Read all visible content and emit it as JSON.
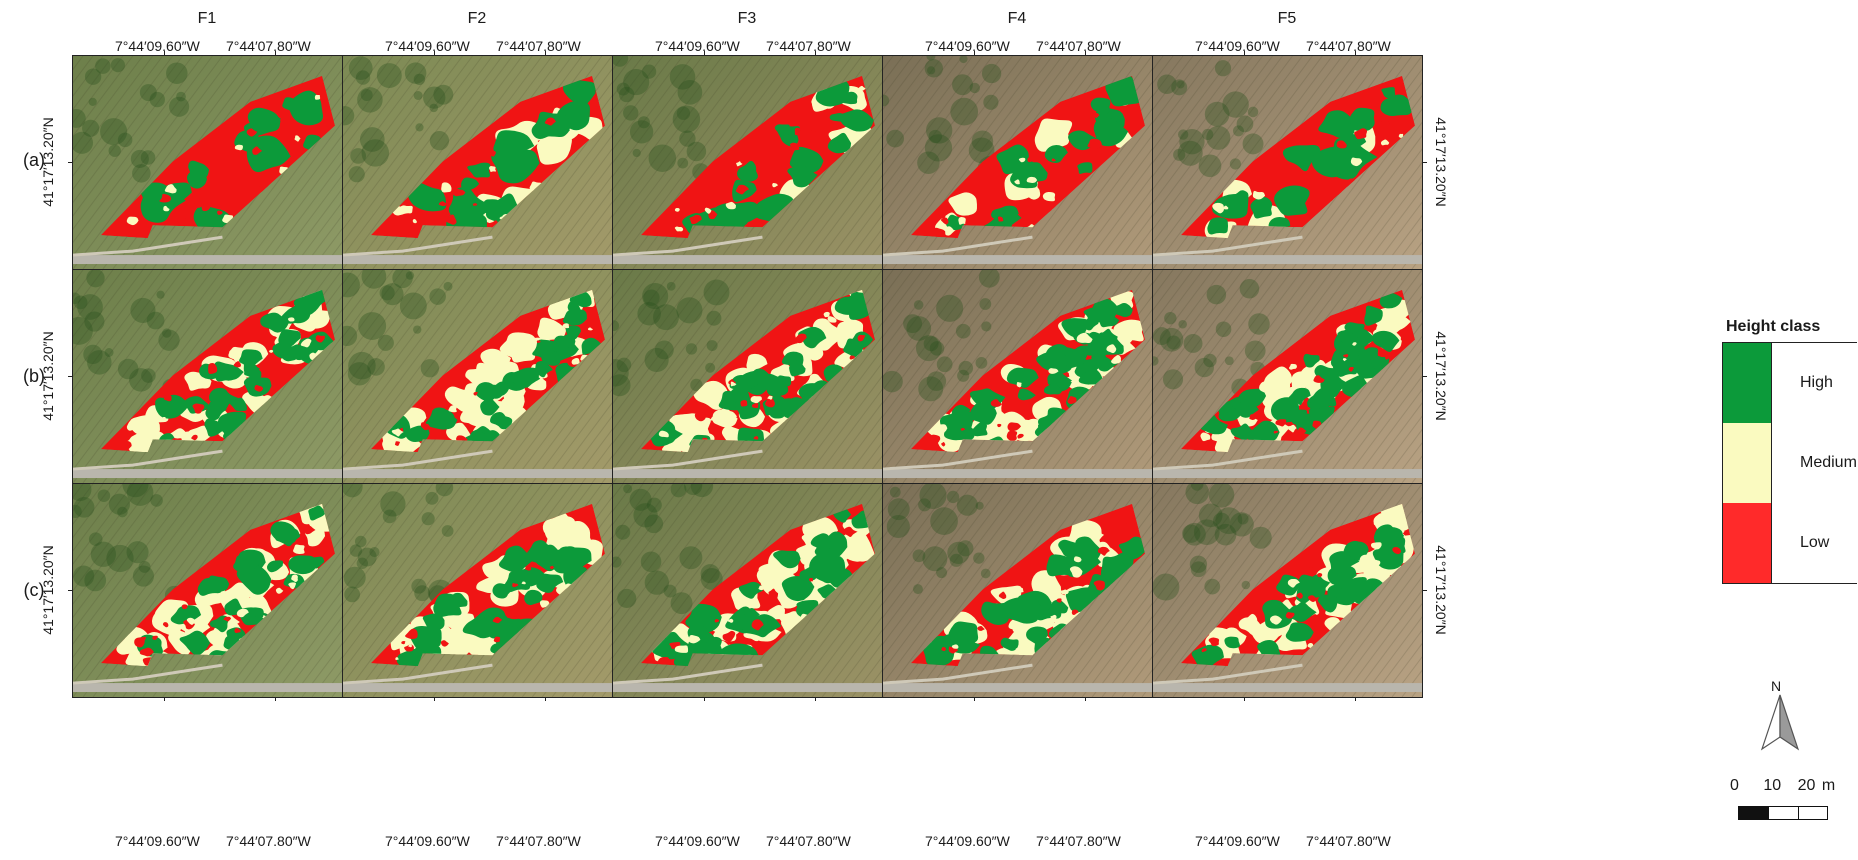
{
  "columns": [
    "F1",
    "F2",
    "F3",
    "F4",
    "F5"
  ],
  "rows": [
    "(a)",
    "(b)",
    "(c)"
  ],
  "lon_ticks": [
    "7°44′09.60″W",
    "7°44′07.80″W"
  ],
  "lat_tick": "41°17′13.20″N",
  "legend": {
    "title": "Height class",
    "classes": [
      {
        "label": "High",
        "color": "#0c9a3a"
      },
      {
        "label": "Medium",
        "color": "#fafac0"
      },
      {
        "label": "Low",
        "color": "#ff2a2a"
      }
    ]
  },
  "north_arrow_label": "N",
  "scale_bar": {
    "labels": [
      "0",
      "10",
      "20 m"
    ]
  },
  "map_colors": {
    "high": "#0c9a3a",
    "medium": "#fafac0",
    "low": "#f01414"
  }
}
